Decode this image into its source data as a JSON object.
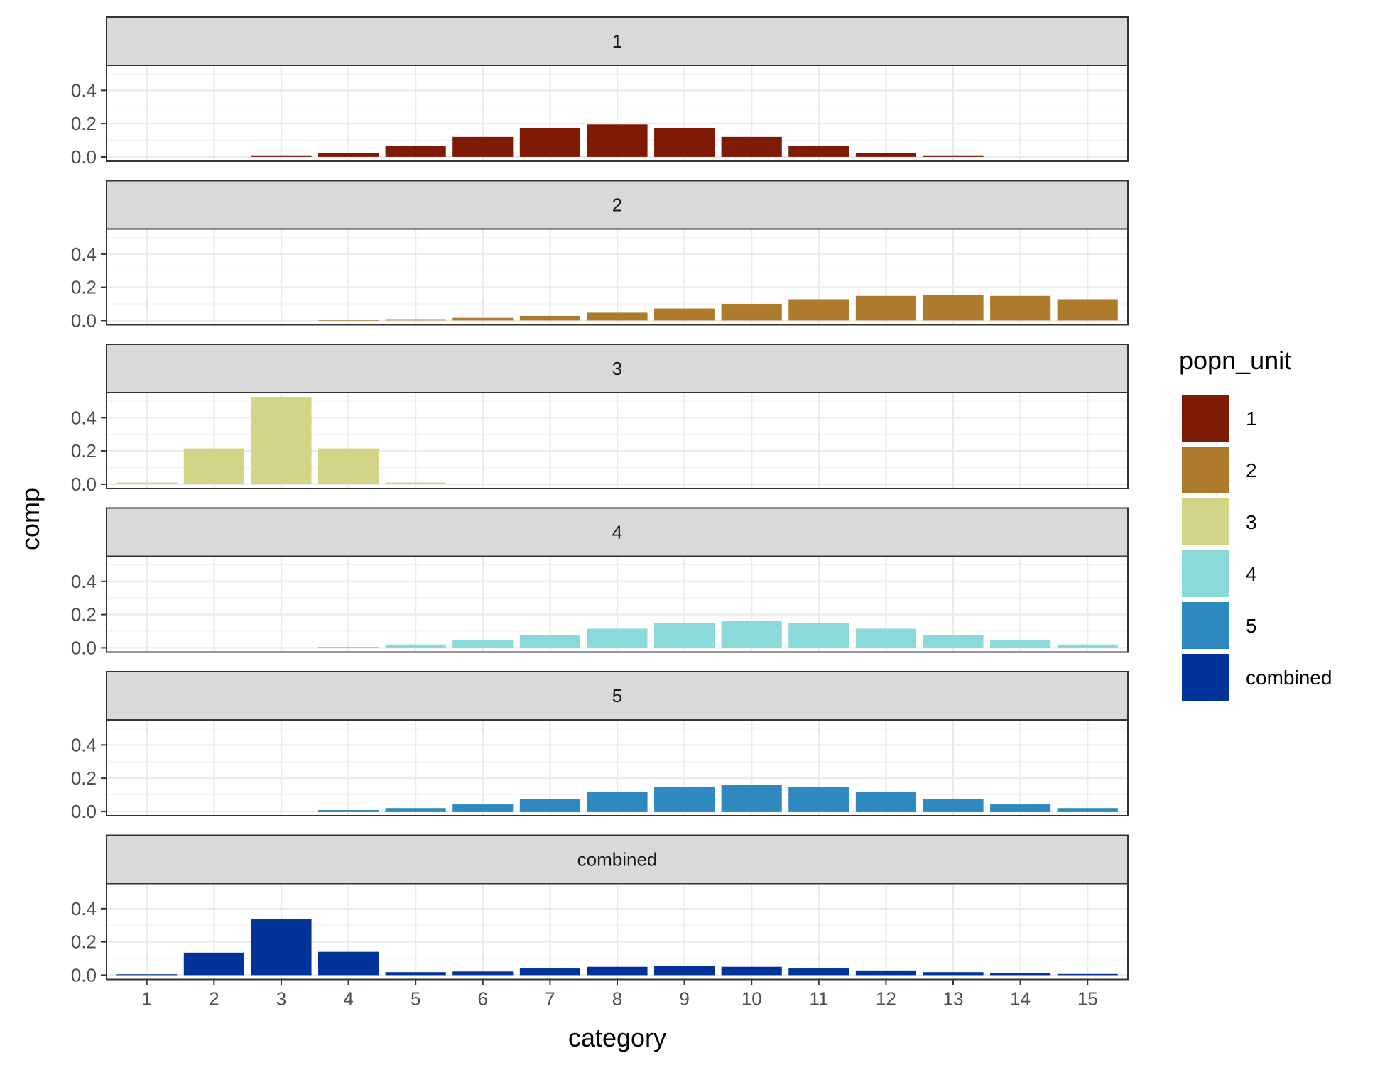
{
  "chart_data": {
    "type": "bar",
    "facet": "popn_unit",
    "xlabel": "category",
    "ylabel": "comp",
    "ylim": [
      0,
      0.5
    ],
    "yticks": [
      0.0,
      0.2,
      0.4
    ],
    "ytick_labels": [
      "0.0",
      "0.2",
      "0.4"
    ],
    "categories": [
      "1",
      "2",
      "3",
      "4",
      "5",
      "6",
      "7",
      "8",
      "9",
      "10",
      "11",
      "12",
      "13",
      "14",
      "15"
    ],
    "grid": true,
    "legend": {
      "title": "popn_unit",
      "position": "right",
      "entries": [
        {
          "label": "1",
          "color": "#7f1a04"
        },
        {
          "label": "2",
          "color": "#ae7a2c"
        },
        {
          "label": "3",
          "color": "#d4d489"
        },
        {
          "label": "4",
          "color": "#8bd9d9"
        },
        {
          "label": "5",
          "color": "#2e89c0"
        },
        {
          "label": "combined",
          "color": "#023399"
        }
      ]
    },
    "series": [
      {
        "name": "1",
        "color": "#7f1a04",
        "values": [
          0.0,
          0.0,
          0.005,
          0.025,
          0.065,
          0.12,
          0.175,
          0.195,
          0.175,
          0.12,
          0.065,
          0.025,
          0.005,
          0.0,
          0.0
        ]
      },
      {
        "name": "2",
        "color": "#ae7a2c",
        "values": [
          0.0,
          0.0,
          0.0,
          0.003,
          0.008,
          0.016,
          0.028,
          0.047,
          0.072,
          0.1,
          0.128,
          0.148,
          0.155,
          0.148,
          0.128
        ]
      },
      {
        "name": "3",
        "color": "#d4d489",
        "values": [
          0.01,
          0.215,
          0.525,
          0.215,
          0.01,
          0.0,
          0.0,
          0.0,
          0.0,
          0.0,
          0.0,
          0.0,
          0.0,
          0.0,
          0.0
        ]
      },
      {
        "name": "4",
        "color": "#8bd9d9",
        "values": [
          0.0,
          0.0,
          0.002,
          0.006,
          0.02,
          0.045,
          0.077,
          0.115,
          0.148,
          0.163,
          0.148,
          0.115,
          0.077,
          0.045,
          0.02
        ]
      },
      {
        "name": "5",
        "color": "#2e89c0",
        "values": [
          0.0,
          0.0,
          0.0,
          0.008,
          0.02,
          0.042,
          0.076,
          0.115,
          0.145,
          0.16,
          0.145,
          0.115,
          0.076,
          0.042,
          0.02
        ]
      },
      {
        "name": "combined",
        "color": "#023399",
        "values": [
          0.005,
          0.135,
          0.335,
          0.14,
          0.018,
          0.022,
          0.04,
          0.05,
          0.055,
          0.05,
          0.04,
          0.028,
          0.018,
          0.012,
          0.007
        ]
      }
    ]
  }
}
